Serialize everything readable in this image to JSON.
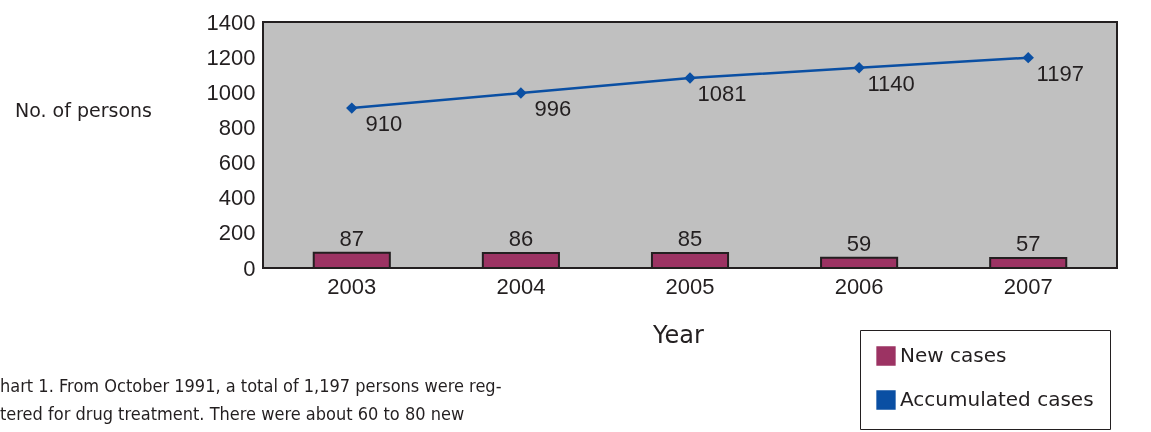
{
  "chart_data": {
    "type": "bar",
    "xlabel": "Year",
    "ylabel": "No. of persons",
    "categories": [
      "2003",
      "2004",
      "2005",
      "2006",
      "2007"
    ],
    "series": [
      {
        "name": "New cases",
        "type": "bar",
        "color": "#9c3363",
        "values": [
          87,
          86,
          85,
          59,
          57
        ]
      },
      {
        "name": "Accumulated cases",
        "type": "line",
        "color": "#0a4fa3",
        "marker": "diamond",
        "values": [
          910,
          996,
          1081,
          1140,
          1197
        ]
      }
    ],
    "ylim": [
      0,
      1400
    ],
    "yticks": [
      0,
      200,
      400,
      600,
      800,
      1000,
      1200,
      1400
    ],
    "data_labels": true,
    "legend": "bottom right",
    "annotations": [
      "hart 1. From October 1991, a total of 1,197 persons were reg-",
      "tered for drug treatment.  There were about 60 to 80 new"
    ]
  }
}
